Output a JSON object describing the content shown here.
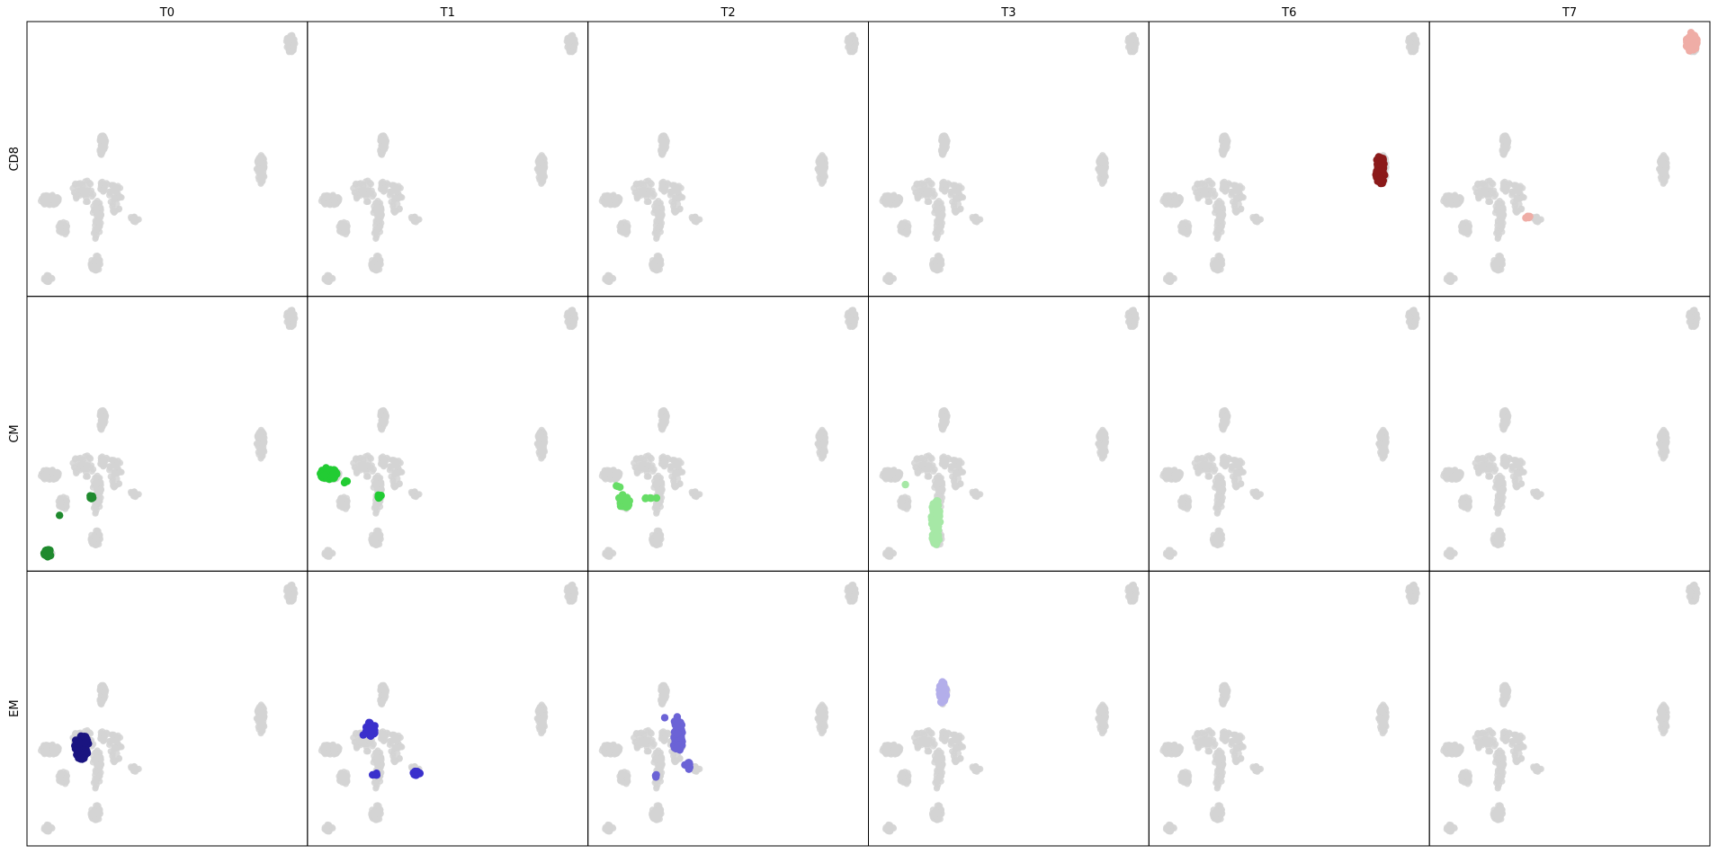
{
  "chart_data": {
    "type": "scatter",
    "layout": "small-multiples grid",
    "columns": [
      "T0",
      "T1",
      "T2",
      "T3",
      "T6",
      "T7"
    ],
    "rows": [
      "CD8",
      "CM",
      "EM"
    ],
    "axes": {
      "xlim": [
        0,
        100
      ],
      "ylim": [
        0,
        100
      ],
      "ticks": false,
      "grid": false
    },
    "background": {
      "color": "#d3d3d3",
      "clusters": [
        {
          "name": "top-right",
          "cx": 94,
          "cy": 92,
          "rx": 1.6,
          "ry": 3.5,
          "n": 55
        },
        {
          "name": "right-mid",
          "cx": 83.5,
          "cy": 46,
          "rx": 1.6,
          "ry": 5.5,
          "n": 55
        },
        {
          "name": "left-arm",
          "cx": 8,
          "cy": 35,
          "rx": 3.5,
          "ry": 2.0,
          "n": 55
        },
        {
          "name": "left-low",
          "cx": 13,
          "cy": 25,
          "rx": 1.8,
          "ry": 2.6,
          "n": 30
        },
        {
          "name": "bottom-left",
          "cx": 7.5,
          "cy": 6.5,
          "rx": 1.5,
          "ry": 1.4,
          "n": 20
        },
        {
          "name": "center-top",
          "cx": 27,
          "cy": 55,
          "rx": 1.3,
          "ry": 4.0,
          "n": 40
        },
        {
          "name": "center-arm",
          "cx": 20,
          "cy": 38,
          "rx": 4.0,
          "ry": 4.5,
          "n": 40
        },
        {
          "name": "center-spine",
          "cx": 25,
          "cy": 28,
          "rx": 1.6,
          "ry": 8.0,
          "n": 55
        },
        {
          "name": "center-bottom",
          "cx": 24.5,
          "cy": 12,
          "rx": 1.8,
          "ry": 3.0,
          "n": 40
        },
        {
          "name": "right-arm",
          "cx": 31.5,
          "cy": 36,
          "rx": 2.2,
          "ry": 6.0,
          "n": 40
        },
        {
          "name": "right-tip",
          "cx": 38,
          "cy": 28,
          "rx": 2.0,
          "ry": 1.2,
          "n": 15
        },
        {
          "name": "mid-link",
          "cx": 27.5,
          "cy": 40,
          "rx": 1.8,
          "ry": 2.0,
          "n": 18
        }
      ]
    },
    "highlights": [
      {
        "row": "CD8",
        "col": "T6",
        "color": "#8b1a1a",
        "groups": [
          {
            "cx": 82.5,
            "cy": 46,
            "rx": 1.7,
            "ry": 5.8,
            "n": 60
          }
        ]
      },
      {
        "row": "CD8",
        "col": "T7",
        "color": "#efada6",
        "groups": [
          {
            "cx": 93.5,
            "cy": 92.5,
            "rx": 2.0,
            "ry": 3.5,
            "n": 60
          },
          {
            "cx": 35.0,
            "cy": 29.0,
            "rx": 1.0,
            "ry": 0.6,
            "n": 5
          }
        ]
      },
      {
        "row": "CM",
        "col": "T0",
        "color": "#1f8a2e",
        "groups": [
          {
            "cx": 7.5,
            "cy": 6.5,
            "rx": 1.4,
            "ry": 1.3,
            "n": 45
          },
          {
            "cx": 23.5,
            "cy": 27.0,
            "rx": 1.2,
            "ry": 0.7,
            "n": 6
          },
          {
            "cx": 11.5,
            "cy": 20.5,
            "rx": 0.3,
            "ry": 0.3,
            "n": 1
          }
        ]
      },
      {
        "row": "CM",
        "col": "T1",
        "color": "#22cc33",
        "groups": [
          {
            "cx": 7.5,
            "cy": 35.5,
            "rx": 3.0,
            "ry": 2.2,
            "n": 70
          },
          {
            "cx": 25.5,
            "cy": 27.5,
            "rx": 0.9,
            "ry": 1.0,
            "n": 6
          },
          {
            "cx": 13.5,
            "cy": 32.5,
            "rx": 0.8,
            "ry": 0.8,
            "n": 3
          }
        ]
      },
      {
        "row": "CM",
        "col": "T2",
        "color": "#66dd66",
        "groups": [
          {
            "cx": 13.0,
            "cy": 25.5,
            "rx": 2.2,
            "ry": 2.4,
            "n": 45
          },
          {
            "cx": 22.5,
            "cy": 26.5,
            "rx": 2.2,
            "ry": 0.6,
            "n": 5
          },
          {
            "cx": 10.5,
            "cy": 30.5,
            "rx": 1.0,
            "ry": 0.6,
            "n": 3
          }
        ]
      },
      {
        "row": "CM",
        "col": "T3",
        "color": "#a6e8a6",
        "groups": [
          {
            "cx": 24.0,
            "cy": 18.0,
            "rx": 1.6,
            "ry": 9.0,
            "n": 70
          },
          {
            "cx": 13.0,
            "cy": 31.5,
            "rx": 0.3,
            "ry": 0.3,
            "n": 1
          }
        ]
      },
      {
        "row": "EM",
        "col": "T0",
        "color": "#1a1480",
        "groups": [
          {
            "cx": 19.5,
            "cy": 36.0,
            "rx": 2.6,
            "ry": 4.5,
            "n": 60
          }
        ]
      },
      {
        "row": "EM",
        "col": "T1",
        "color": "#3a30cc",
        "groups": [
          {
            "cx": 22.5,
            "cy": 42.5,
            "rx": 1.8,
            "ry": 2.6,
            "n": 45
          },
          {
            "cx": 39.0,
            "cy": 26.5,
            "rx": 1.6,
            "ry": 0.8,
            "n": 12
          },
          {
            "cx": 24.0,
            "cy": 26.0,
            "rx": 1.0,
            "ry": 0.6,
            "n": 4
          },
          {
            "cx": 20.0,
            "cy": 40.5,
            "rx": 0.3,
            "ry": 0.3,
            "n": 1
          }
        ]
      },
      {
        "row": "EM",
        "col": "T2",
        "color": "#6b63d6",
        "groups": [
          {
            "cx": 32.0,
            "cy": 40.0,
            "rx": 1.8,
            "ry": 7.0,
            "n": 60
          },
          {
            "cx": 35.5,
            "cy": 29.0,
            "rx": 1.4,
            "ry": 1.4,
            "n": 12
          },
          {
            "cx": 25.0,
            "cy": 25.5,
            "rx": 1.0,
            "ry": 0.8,
            "n": 3
          },
          {
            "cx": 27.5,
            "cy": 46.5,
            "rx": 0.3,
            "ry": 0.3,
            "n": 1
          }
        ]
      },
      {
        "row": "EM",
        "col": "T3",
        "color": "#b3aeea",
        "groups": [
          {
            "cx": 26.5,
            "cy": 55.5,
            "rx": 1.3,
            "ry": 4.2,
            "n": 40
          }
        ]
      }
    ]
  }
}
